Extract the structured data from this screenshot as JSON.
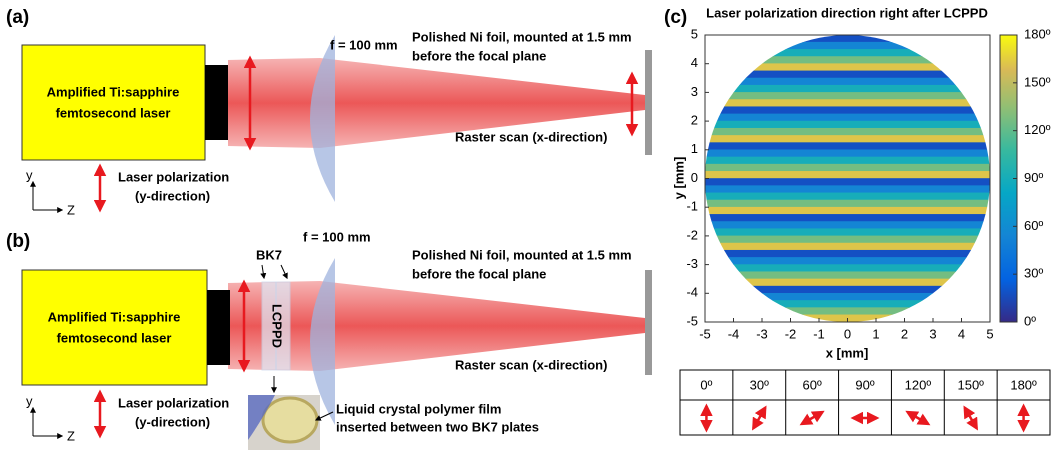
{
  "panel_a": {
    "label": "(a)",
    "laser": [
      "Amplified Ti:sapphire",
      "femtosecond laser"
    ],
    "lens": "f = 100 mm",
    "foil": [
      "Polished Ni foil, mounted at 1.5 mm",
      "before the focal plane"
    ],
    "raster": "Raster scan (x-direction)",
    "polarization": [
      "Laser polarization",
      "(y-direction)"
    ],
    "axis_y": "y",
    "axis_z": "Z"
  },
  "panel_b": {
    "label": "(b)",
    "laser": [
      "Amplified Ti:sapphire",
      "femtosecond laser"
    ],
    "lens": "f = 100 mm",
    "plates": "BK7",
    "device": "LCPPD",
    "foil": [
      "Polished Ni foil, mounted at 1.5 mm",
      "before the focal plane"
    ],
    "raster": "Raster scan (x-direction)",
    "polarization": [
      "Laser polarization",
      "(y-direction)"
    ],
    "film": [
      "Liquid crystal polymer film",
      "inserted between two BK7 plates"
    ],
    "axis_y": "y",
    "axis_z": "Z"
  },
  "chart_data": {
    "type": "heatmap",
    "panel_label": "(c)",
    "title": "Laser polarization direction right after LCPPD",
    "xlabel": "x [mm]",
    "ylabel": "y [mm]",
    "xlim": [
      -5,
      5
    ],
    "ylim": [
      -5,
      5
    ],
    "xticks": [
      -5,
      -4,
      -3,
      -2,
      -1,
      0,
      1,
      2,
      3,
      4,
      5
    ],
    "yticks": [
      -5,
      -4,
      -3,
      -2,
      -1,
      0,
      1,
      2,
      3,
      4,
      5
    ],
    "y": [
      4.875,
      4.625,
      4.375,
      4.125,
      3.875,
      3.625,
      3.375,
      3.125,
      2.875,
      2.625,
      2.375,
      2.125,
      1.875,
      1.625,
      1.375,
      1.125,
      0.875,
      0.625,
      0.375,
      0.125,
      -0.125,
      -0.375,
      -0.625,
      -0.875,
      -1.125,
      -1.375,
      -1.625,
      -1.875,
      -2.125,
      -2.375,
      -2.625,
      -2.875,
      -3.125,
      -3.375,
      -3.625,
      -3.875,
      -4.125,
      -4.375,
      -4.625,
      -4.875
    ],
    "values": [
      18,
      54,
      90,
      126,
      162,
      18,
      54,
      90,
      126,
      162,
      18,
      54,
      90,
      126,
      162,
      18,
      54,
      90,
      126,
      162,
      18,
      54,
      90,
      126,
      162,
      18,
      54,
      90,
      126,
      162,
      18,
      54,
      90,
      126,
      162,
      18,
      54,
      90,
      126,
      162
    ],
    "colorbar": {
      "lim": [
        0,
        180
      ],
      "ticks": [
        {
          "value": 0,
          "label": "0º"
        },
        {
          "value": 30,
          "label": "30º"
        },
        {
          "value": 60,
          "label": "60º"
        },
        {
          "value": 90,
          "label": "90º"
        },
        {
          "value": 120,
          "label": "120º"
        },
        {
          "value": 150,
          "label": "150º"
        },
        {
          "value": 180,
          "label": "180º"
        }
      ]
    }
  },
  "table": {
    "columns": [
      {
        "value": 0,
        "label": "0º"
      },
      {
        "value": 30,
        "label": "30º"
      },
      {
        "value": 60,
        "label": "60º"
      },
      {
        "value": 90,
        "label": "90º"
      },
      {
        "value": 120,
        "label": "120º"
      },
      {
        "value": 150,
        "label": "150º"
      },
      {
        "value": 180,
        "label": "180º"
      }
    ]
  }
}
